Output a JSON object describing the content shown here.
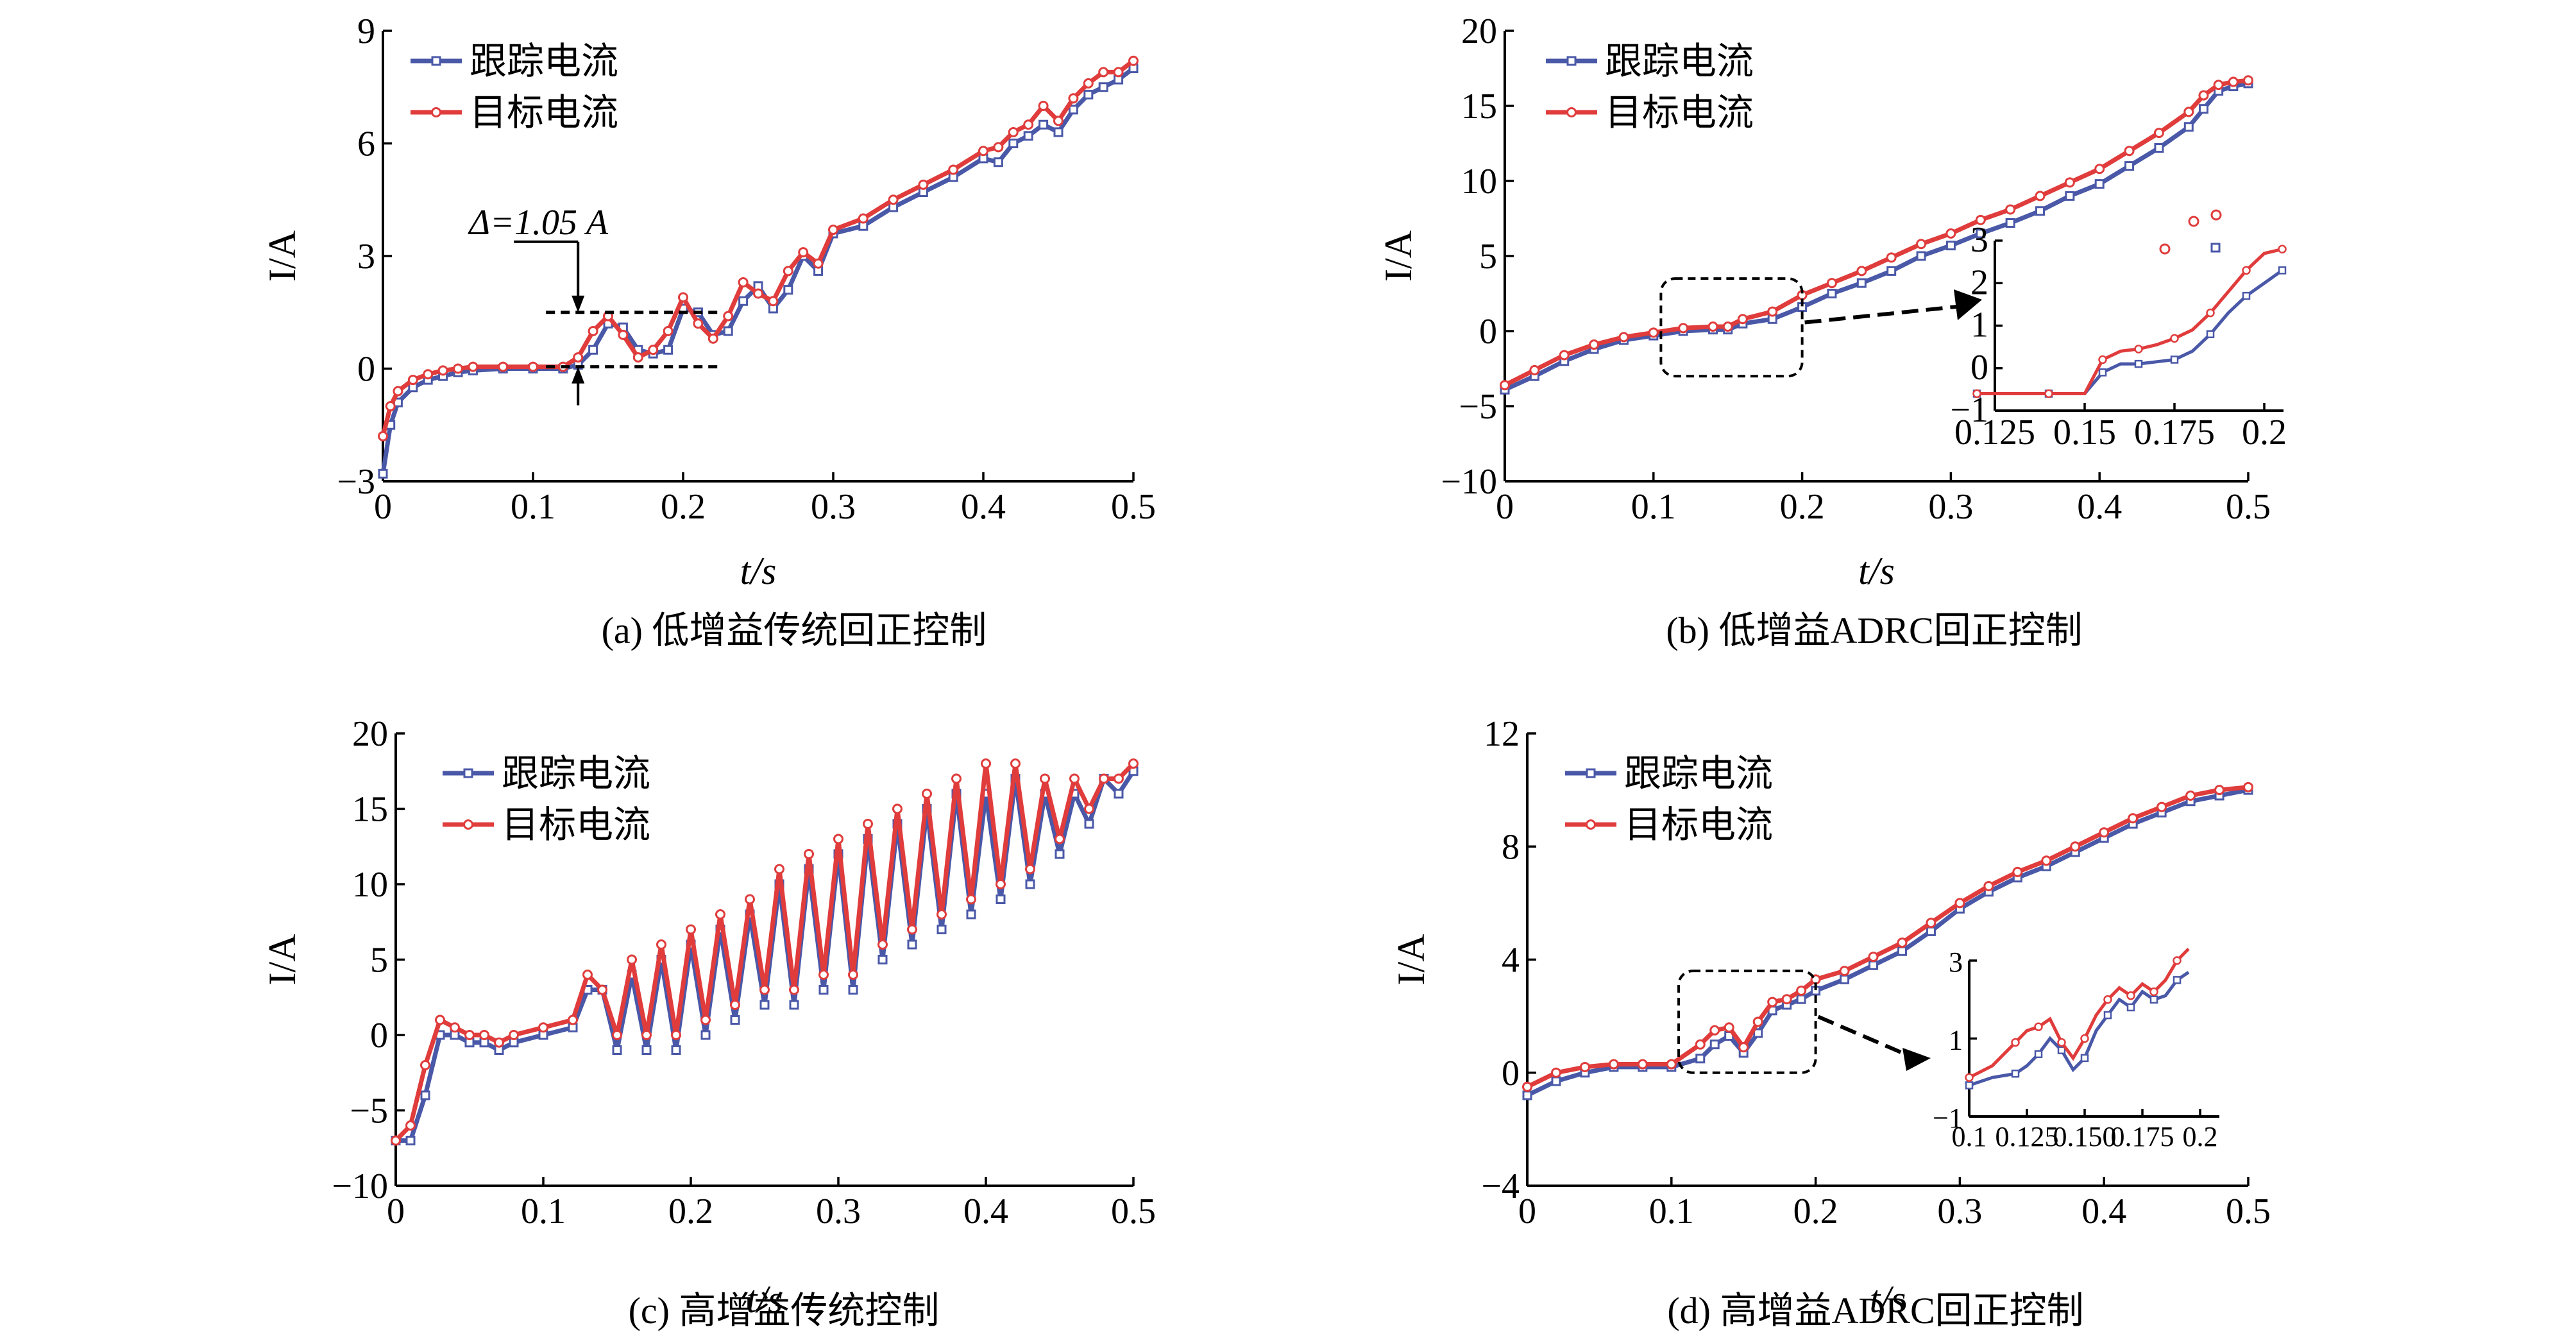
{
  "chart_data": [
    {
      "type": "line",
      "caption": "(a) 低增益传统回正控制",
      "xlabel": "t/s",
      "ylabel": "I/A",
      "xlim": [
        0,
        0.5
      ],
      "ylim": [
        -3,
        9
      ],
      "xticks": [
        "0",
        "0.1",
        "0.2",
        "0.3",
        "0.4",
        "0.5"
      ],
      "yticks": [
        "−3",
        "0",
        "3",
        "6",
        "9"
      ],
      "legend": [
        "跟踪电流",
        "目标电流"
      ],
      "legend_position": "top-left",
      "annotation": "Δ=1.05  A",
      "annotation_levels": [
        0.05,
        1.5
      ],
      "annotation_x": 0.13,
      "series": [
        {
          "name": "跟踪电流",
          "color": "#4a58a8",
          "marker": "square",
          "x": [
            0,
            0.005,
            0.01,
            0.02,
            0.03,
            0.04,
            0.05,
            0.06,
            0.08,
            0.1,
            0.12,
            0.13,
            0.14,
            0.15,
            0.16,
            0.17,
            0.18,
            0.19,
            0.2,
            0.21,
            0.22,
            0.23,
            0.24,
            0.25,
            0.26,
            0.27,
            0.28,
            0.29,
            0.3,
            0.32,
            0.34,
            0.36,
            0.38,
            0.4,
            0.41,
            0.42,
            0.43,
            0.44,
            0.45,
            0.46,
            0.47,
            0.48,
            0.49,
            0.5
          ],
          "y": [
            -2.8,
            -1.5,
            -0.9,
            -0.5,
            -0.3,
            -0.2,
            -0.1,
            -0.05,
            0,
            0,
            0,
            0.1,
            0.5,
            1.2,
            1.1,
            0.5,
            0.4,
            0.5,
            1.6,
            1.5,
            0.9,
            1.0,
            1.8,
            2.2,
            1.6,
            2.1,
            3.0,
            2.6,
            3.6,
            3.8,
            4.3,
            4.7,
            5.1,
            5.6,
            5.5,
            6.0,
            6.2,
            6.5,
            6.3,
            6.9,
            7.3,
            7.5,
            7.7,
            8.0
          ]
        },
        {
          "name": "目标电流",
          "color": "#e03c3c",
          "marker": "circle",
          "x": [
            0,
            0.005,
            0.01,
            0.02,
            0.03,
            0.04,
            0.05,
            0.06,
            0.08,
            0.1,
            0.12,
            0.13,
            0.14,
            0.15,
            0.16,
            0.17,
            0.18,
            0.19,
            0.2,
            0.21,
            0.22,
            0.23,
            0.24,
            0.25,
            0.26,
            0.27,
            0.28,
            0.29,
            0.3,
            0.32,
            0.34,
            0.36,
            0.38,
            0.4,
            0.41,
            0.42,
            0.43,
            0.44,
            0.45,
            0.46,
            0.47,
            0.48,
            0.49,
            0.5
          ],
          "y": [
            -1.8,
            -1.0,
            -0.6,
            -0.3,
            -0.15,
            -0.05,
            0,
            0.05,
            0.05,
            0.05,
            0.05,
            0.3,
            1.0,
            1.4,
            0.9,
            0.3,
            0.5,
            1.0,
            1.9,
            1.2,
            0.8,
            1.4,
            2.3,
            2.0,
            1.8,
            2.6,
            3.1,
            2.8,
            3.7,
            4.0,
            4.5,
            4.9,
            5.3,
            5.8,
            5.9,
            6.3,
            6.5,
            7.0,
            6.6,
            7.2,
            7.6,
            7.9,
            7.9,
            8.2
          ]
        }
      ]
    },
    {
      "type": "line",
      "caption": "(b) 低增益ADRC回正控制",
      "xlabel": "t/s",
      "ylabel": "I/A",
      "xlim": [
        0,
        0.5
      ],
      "ylim": [
        -10,
        20
      ],
      "xticks": [
        "0",
        "0.1",
        "0.2",
        "0.3",
        "0.4",
        "0.5"
      ],
      "yticks": [
        "−10",
        "−5",
        "0",
        "5",
        "10",
        "15",
        "20"
      ],
      "legend": [
        "跟踪电流",
        "目标电流"
      ],
      "legend_position": "top-left",
      "zoom_box_x": [
        0.105,
        0.2
      ],
      "zoom_box_y": [
        -3,
        3.5
      ],
      "series": [
        {
          "name": "跟踪电流",
          "color": "#4a58a8",
          "marker": "square",
          "x": [
            0,
            0.02,
            0.04,
            0.06,
            0.08,
            0.1,
            0.12,
            0.14,
            0.15,
            0.16,
            0.18,
            0.2,
            0.22,
            0.24,
            0.26,
            0.28,
            0.3,
            0.32,
            0.34,
            0.36,
            0.38,
            0.4,
            0.42,
            0.44,
            0.46,
            0.47,
            0.48,
            0.49,
            0.5
          ],
          "y": [
            -3.9,
            -3.0,
            -2.0,
            -1.2,
            -0.6,
            -0.3,
            0,
            0.1,
            0.1,
            0.5,
            0.8,
            1.6,
            2.5,
            3.2,
            4.0,
            5.0,
            5.7,
            6.5,
            7.2,
            8.0,
            9.0,
            9.8,
            11.0,
            12.2,
            13.6,
            14.8,
            16.0,
            16.3,
            16.5
          ]
        },
        {
          "name": "目标电流",
          "color": "#e03c3c",
          "marker": "circle",
          "x": [
            0,
            0.02,
            0.04,
            0.06,
            0.08,
            0.1,
            0.12,
            0.14,
            0.15,
            0.16,
            0.18,
            0.2,
            0.22,
            0.24,
            0.26,
            0.28,
            0.3,
            0.32,
            0.34,
            0.36,
            0.38,
            0.4,
            0.42,
            0.44,
            0.46,
            0.47,
            0.48,
            0.49,
            0.5
          ],
          "y": [
            -3.6,
            -2.6,
            -1.6,
            -0.9,
            -0.4,
            -0.1,
            0.2,
            0.3,
            0.3,
            0.8,
            1.3,
            2.4,
            3.2,
            4.0,
            4.9,
            5.8,
            6.5,
            7.4,
            8.1,
            9.0,
            9.9,
            10.8,
            12.0,
            13.2,
            14.6,
            15.7,
            16.4,
            16.6,
            16.7
          ]
        }
      ],
      "inset": {
        "xlim": [
          0.125,
          0.2
        ],
        "ylim": [
          -1,
          3
        ],
        "xticks": [
          "0.125",
          "0.15",
          "0.175",
          "0.2"
        ],
        "yticks": [
          "−1",
          "0",
          "1",
          "2",
          "3"
        ],
        "series": [
          {
            "name": "跟踪电流",
            "color": "#4a58a8",
            "x": [
              0.12,
              0.13,
              0.14,
              0.15,
              0.155,
              0.16,
              0.165,
              0.17,
              0.175,
              0.18,
              0.185,
              0.19,
              0.195,
              0.2,
              0.205
            ],
            "y": [
              -0.6,
              -0.6,
              -0.6,
              -0.6,
              -0.1,
              0.1,
              0.1,
              0.15,
              0.2,
              0.4,
              0.8,
              1.3,
              1.7,
              2.0,
              2.3
            ]
          },
          {
            "name": "目标电流",
            "color": "#e03c3c",
            "x": [
              0.12,
              0.13,
              0.14,
              0.15,
              0.155,
              0.16,
              0.165,
              0.17,
              0.175,
              0.18,
              0.185,
              0.19,
              0.195,
              0.2,
              0.205
            ],
            "y": [
              -0.6,
              -0.6,
              -0.6,
              -0.6,
              0.2,
              0.4,
              0.45,
              0.55,
              0.7,
              0.9,
              1.3,
              1.8,
              2.3,
              2.7,
              2.8
            ]
          }
        ]
      }
    },
    {
      "type": "line",
      "caption": "(c) 高增益传统控制",
      "xlabel": "t/s",
      "ylabel": "I/A",
      "xlim": [
        0,
        0.5
      ],
      "ylim": [
        -10,
        20
      ],
      "xticks": [
        "0",
        "0.1",
        "0.2",
        "0.3",
        "0.4",
        "0.5"
      ],
      "yticks": [
        "−10",
        "−5",
        "0",
        "5",
        "10",
        "15",
        "20"
      ],
      "legend": [
        "跟踪电流",
        "目标电流"
      ],
      "legend_position": "top-left",
      "series": [
        {
          "name": "跟踪电流",
          "color": "#4a58a8",
          "marker": "square",
          "x": [
            0,
            0.01,
            0.02,
            0.03,
            0.04,
            0.05,
            0.06,
            0.07,
            0.08,
            0.1,
            0.12,
            0.13,
            0.14,
            0.15,
            0.16,
            0.17,
            0.18,
            0.19,
            0.2,
            0.21,
            0.22,
            0.23,
            0.24,
            0.25,
            0.26,
            0.27,
            0.28,
            0.29,
            0.3,
            0.31,
            0.32,
            0.33,
            0.34,
            0.35,
            0.36,
            0.37,
            0.38,
            0.39,
            0.4,
            0.41,
            0.42,
            0.43,
            0.44,
            0.45,
            0.46,
            0.47,
            0.48,
            0.49,
            0.5
          ],
          "y": [
            -7,
            -7,
            -4,
            0,
            0,
            -0.5,
            -0.5,
            -1,
            -0.5,
            0,
            0.5,
            3,
            3,
            -1,
            4,
            -1,
            5,
            -1,
            6,
            0,
            7,
            1,
            8,
            2,
            10,
            2,
            11,
            3,
            12,
            3,
            13,
            5,
            14,
            6,
            15,
            7,
            16,
            8,
            16,
            9,
            17,
            10,
            16,
            12,
            16,
            14,
            17,
            16,
            17.5
          ]
        },
        {
          "name": "目标电流",
          "color": "#e03c3c",
          "marker": "circle",
          "x": [
            0,
            0.01,
            0.02,
            0.03,
            0.04,
            0.05,
            0.06,
            0.07,
            0.08,
            0.1,
            0.12,
            0.13,
            0.14,
            0.15,
            0.16,
            0.17,
            0.18,
            0.19,
            0.2,
            0.21,
            0.22,
            0.23,
            0.24,
            0.25,
            0.26,
            0.27,
            0.28,
            0.29,
            0.3,
            0.31,
            0.32,
            0.33,
            0.34,
            0.35,
            0.36,
            0.37,
            0.38,
            0.39,
            0.4,
            0.41,
            0.42,
            0.43,
            0.44,
            0.45,
            0.46,
            0.47,
            0.48,
            0.49,
            0.5
          ],
          "y": [
            -7,
            -6,
            -2,
            1,
            0.5,
            0,
            0,
            -0.5,
            0,
            0.5,
            1,
            4,
            3,
            0,
            5,
            0,
            6,
            0,
            7,
            1,
            8,
            2,
            9,
            3,
            11,
            3,
            12,
            4,
            13,
            4,
            14,
            6,
            15,
            7,
            16,
            8,
            17,
            9,
            18,
            10,
            18,
            11,
            17,
            13,
            17,
            15,
            17,
            17,
            18
          ]
        }
      ]
    },
    {
      "type": "line",
      "caption": "(d) 高增益ADRC回正控制",
      "xlabel": "t/s",
      "ylabel": "I/A",
      "xlim": [
        0,
        0.5
      ],
      "ylim": [
        -4,
        12
      ],
      "xticks": [
        "0",
        "0.1",
        "0.2",
        "0.3",
        "0.4",
        "0.5"
      ],
      "yticks": [
        "−4",
        "0",
        "4",
        "8",
        "12"
      ],
      "legend": [
        "跟踪电流",
        "目标电流"
      ],
      "legend_position": "top-left",
      "zoom_box_x": [
        0.105,
        0.2
      ],
      "zoom_box_y": [
        0,
        3.6
      ],
      "series": [
        {
          "name": "跟踪电流",
          "color": "#4a58a8",
          "marker": "square",
          "x": [
            0,
            0.02,
            0.04,
            0.06,
            0.08,
            0.1,
            0.12,
            0.13,
            0.14,
            0.15,
            0.16,
            0.17,
            0.18,
            0.19,
            0.2,
            0.22,
            0.24,
            0.26,
            0.28,
            0.3,
            0.32,
            0.34,
            0.36,
            0.38,
            0.4,
            0.42,
            0.44,
            0.46,
            0.48,
            0.5
          ],
          "y": [
            -0.8,
            -0.3,
            0,
            0.2,
            0.2,
            0.2,
            0.5,
            1.0,
            1.3,
            0.7,
            1.4,
            2.2,
            2.4,
            2.6,
            2.9,
            3.3,
            3.8,
            4.3,
            5.0,
            5.8,
            6.4,
            6.9,
            7.3,
            7.8,
            8.3,
            8.8,
            9.2,
            9.6,
            9.8,
            10.0
          ]
        },
        {
          "name": "目标电流",
          "color": "#e03c3c",
          "marker": "circle",
          "x": [
            0,
            0.02,
            0.04,
            0.06,
            0.08,
            0.1,
            0.12,
            0.13,
            0.14,
            0.15,
            0.16,
            0.17,
            0.18,
            0.19,
            0.2,
            0.22,
            0.24,
            0.26,
            0.28,
            0.3,
            0.32,
            0.34,
            0.36,
            0.38,
            0.4,
            0.42,
            0.44,
            0.46,
            0.48,
            0.5
          ],
          "y": [
            -0.5,
            0,
            0.2,
            0.3,
            0.3,
            0.3,
            1.0,
            1.5,
            1.6,
            0.9,
            1.8,
            2.5,
            2.6,
            2.9,
            3.3,
            3.6,
            4.1,
            4.6,
            5.3,
            6.0,
            6.6,
            7.1,
            7.5,
            8.0,
            8.5,
            9.0,
            9.4,
            9.8,
            10.0,
            10.1
          ]
        }
      ],
      "inset": {
        "xlim": [
          0.1,
          0.2
        ],
        "ylim": [
          -1,
          3
        ],
        "xticks": [
          "0.1",
          "0.125",
          "0.150",
          "0.175",
          "0.2"
        ],
        "yticks": [
          "−1",
          "1",
          "3"
        ],
        "series": [
          {
            "name": "跟踪电流",
            "color": "#4a58a8",
            "x": [
              0.1,
              0.11,
              0.12,
              0.125,
              0.13,
              0.135,
              0.14,
              0.145,
              0.15,
              0.155,
              0.16,
              0.165,
              0.17,
              0.175,
              0.18,
              0.185,
              0.19,
              0.195
            ],
            "y": [
              -0.2,
              0,
              0.1,
              0.3,
              0.6,
              1.0,
              0.7,
              0.2,
              0.5,
              1.2,
              1.6,
              2.0,
              1.8,
              2.2,
              2.0,
              2.1,
              2.5,
              2.7
            ]
          },
          {
            "name": "目标电流",
            "color": "#e03c3c",
            "x": [
              0.1,
              0.11,
              0.12,
              0.125,
              0.13,
              0.135,
              0.14,
              0.145,
              0.15,
              0.155,
              0.16,
              0.165,
              0.17,
              0.175,
              0.18,
              0.185,
              0.19,
              0.195
            ],
            "y": [
              0,
              0.3,
              0.9,
              1.2,
              1.3,
              1.5,
              0.9,
              0.5,
              1.0,
              1.6,
              2.0,
              2.3,
              2.1,
              2.4,
              2.2,
              2.5,
              3.0,
              3.3
            ]
          }
        ]
      }
    }
  ]
}
